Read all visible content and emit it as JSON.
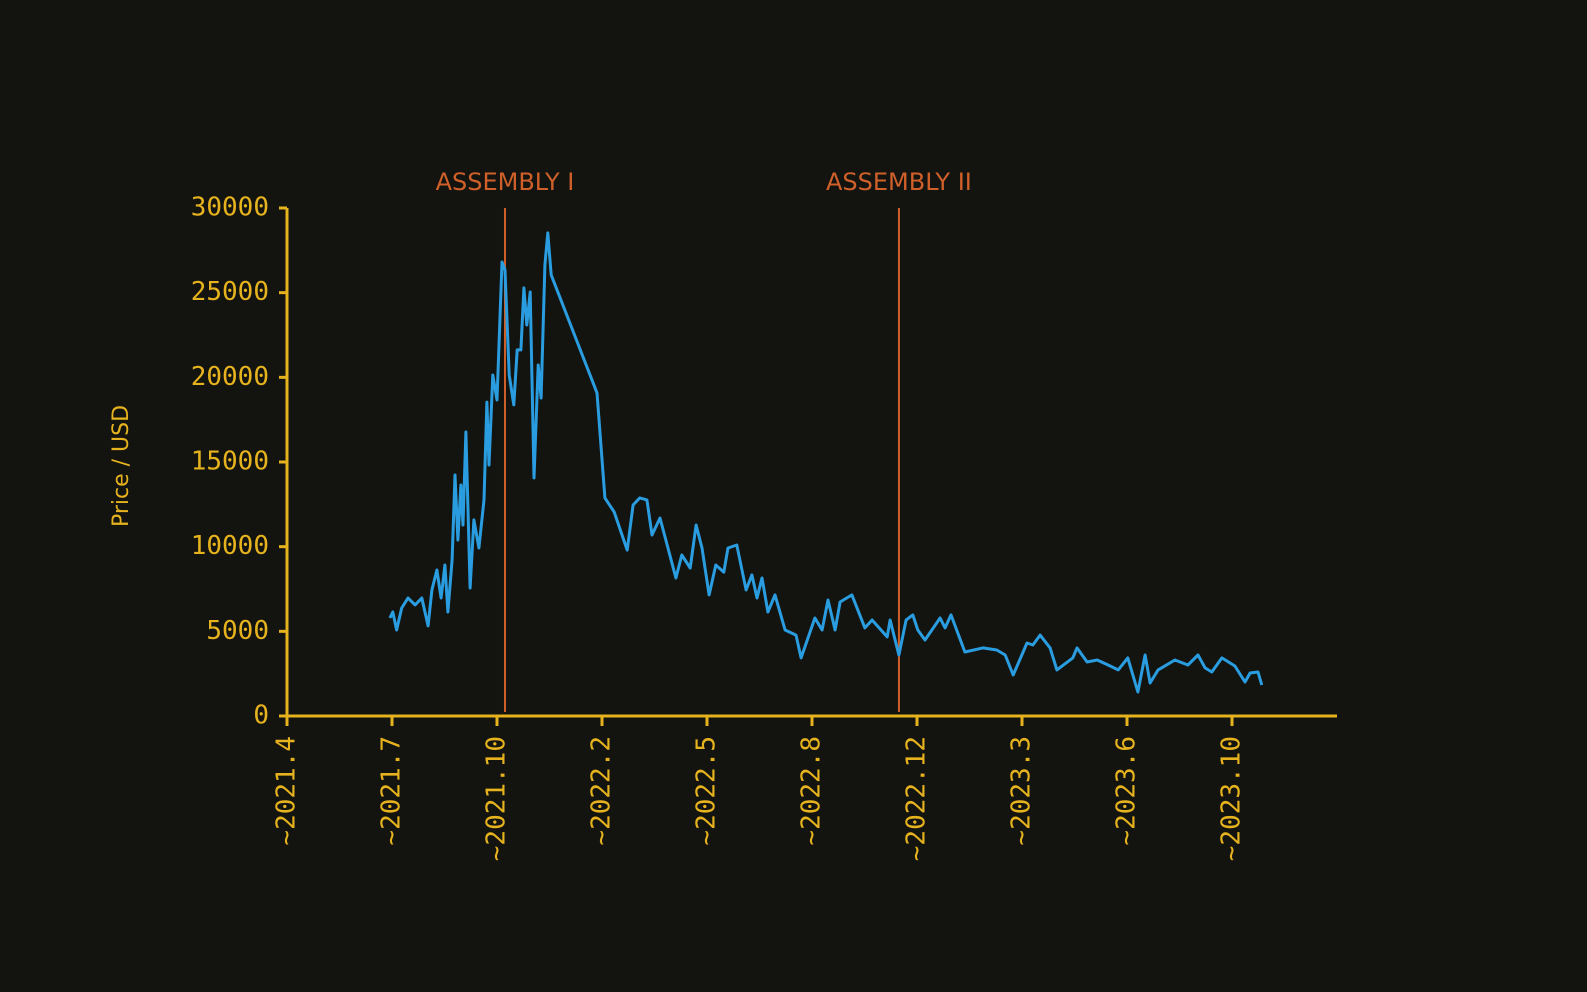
{
  "chart_data": {
    "type": "line",
    "ylabel": "Price / USD",
    "color": "#2a9de0",
    "axis_color": "#e6b31e",
    "xlim": [
      2021.25,
      2023.75
    ],
    "xticks": [
      {
        "value": 2021.25,
        "label": "~2021.4"
      },
      {
        "value": 2021.5,
        "label": "~2021.7"
      },
      {
        "value": 2021.75,
        "label": "~2021.10"
      },
      {
        "value": 2022.0,
        "label": "~2022.2"
      },
      {
        "value": 2022.25,
        "label": "~2022.5"
      },
      {
        "value": 2022.5,
        "label": "~2022.8"
      },
      {
        "value": 2022.75,
        "label": "~2022.12"
      },
      {
        "value": 2023.0,
        "label": "~2023.3"
      },
      {
        "value": 2023.25,
        "label": "~2023.6"
      },
      {
        "value": 2023.5,
        "label": "~2023.10"
      }
    ],
    "ylim": [
      0,
      30000
    ],
    "yticks": [
      0,
      5000,
      10000,
      15000,
      20000,
      25000,
      30000
    ],
    "annotations": [
      {
        "label": "ASSEMBLY I",
        "x": 2021.769,
        "color": "#d0602a"
      },
      {
        "label": "ASSEMBLY II",
        "x": 2022.707,
        "color": "#d0602a"
      }
    ],
    "x": [
      2021.495,
      2021.502,
      2021.511,
      2021.523,
      2021.538,
      2021.555,
      2021.571,
      2021.586,
      2021.595,
      2021.607,
      2021.617,
      2021.626,
      2021.633,
      2021.643,
      2021.65,
      2021.657,
      2021.664,
      2021.669,
      2021.676,
      2021.686,
      2021.695,
      2021.707,
      2021.719,
      2021.726,
      2021.731,
      2021.74,
      2021.75,
      2021.762,
      2021.769,
      2021.779,
      2021.79,
      2021.798,
      2021.807,
      2021.814,
      2021.821,
      2021.829,
      2021.838,
      2021.848,
      2021.855,
      2021.864,
      2021.871,
      2021.879,
      2021.988,
      2022.007,
      2022.029,
      2022.06,
      2022.074,
      2022.09,
      2022.107,
      2022.119,
      2022.138,
      2022.176,
      2022.19,
      2022.21,
      2022.224,
      2022.238,
      2022.255,
      2022.271,
      2022.29,
      2022.3,
      2022.321,
      2022.343,
      2022.357,
      2022.369,
      2022.381,
      2022.395,
      2022.412,
      2022.436,
      2022.462,
      2022.474,
      2022.507,
      2022.524,
      2022.538,
      2022.555,
      2022.567,
      2022.595,
      2022.626,
      2022.643,
      2022.679,
      2022.686,
      2022.707,
      2022.724,
      2022.74,
      2022.752,
      2022.769,
      2022.805,
      2022.817,
      2022.831,
      2022.864,
      2022.907,
      2022.94,
      2022.96,
      2022.979,
      2023.012,
      2023.026,
      2023.043,
      2023.067,
      2023.083,
      2023.121,
      2023.131,
      2023.155,
      2023.179,
      2023.205,
      2023.229,
      2023.252,
      2023.276,
      2023.293,
      2023.305,
      2023.324,
      2023.364,
      2023.395,
      2023.419,
      2023.436,
      2023.452,
      2023.476,
      2023.507,
      2023.531,
      2023.543,
      2023.562,
      2023.571
    ],
    "values": [
      5790,
      6140,
      5080,
      6380,
      6970,
      6560,
      6970,
      5320,
      7440,
      8620,
      6970,
      8920,
      6140,
      9210,
      14230,
      10390,
      13640,
      11280,
      16770,
      7560,
      11580,
      9920,
      12760,
      18540,
      14820,
      20140,
      18660,
      26810,
      26340,
      20140,
      18370,
      21620,
      21620,
      25280,
      23090,
      25040,
      14060,
      20730,
      18780,
      26640,
      28530,
      26050,
      19080,
      12880,
      12050,
      9800,
      12460,
      12880,
      12760,
      10690,
      11690,
      8150,
      9510,
      8740,
      11280,
      9920,
      7150,
      8920,
      8500,
      9920,
      10100,
      7440,
      8330,
      6970,
      8150,
      6140,
      7150,
      5080,
      4780,
      3430,
      5790,
      5080,
      6850,
      5080,
      6730,
      7150,
      5200,
      5670,
      4670,
      5670,
      3600,
      5670,
      5970,
      5080,
      4490,
      5790,
      5200,
      5970,
      3780,
      4020,
      3900,
      3600,
      2420,
      4310,
      4190,
      4780,
      4020,
      2720,
      3430,
      4020,
      3190,
      3310,
      3010,
      2720,
      3430,
      1420,
      3600,
      1950,
      2720,
      3310,
      3010,
      3600,
      2840,
      2600,
      3430,
      2950,
      2010,
      2540,
      2600,
      1830
    ]
  }
}
